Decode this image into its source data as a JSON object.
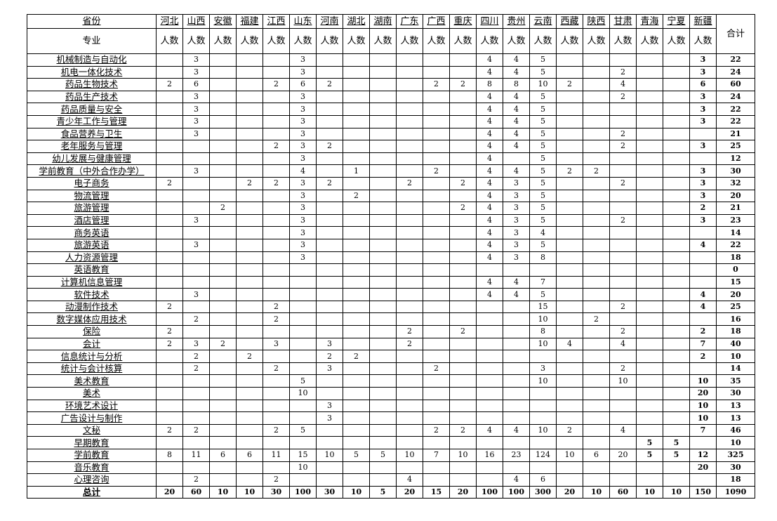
{
  "header": {
    "province_label": "省份",
    "major_label": "专业",
    "count_label": "人数",
    "total_label": "合计",
    "provinces": [
      "河北",
      "山西",
      "安徽",
      "福建",
      "江西",
      "山东",
      "河南",
      "湖北",
      "湖南",
      "广东",
      "广西",
      "重庆",
      "四川",
      "贵州",
      "云南",
      "西藏",
      "陕西",
      "甘肃",
      "青海",
      "宁夏",
      "新疆"
    ]
  },
  "rows": [
    {
      "major": "机械制造与自动化",
      "counts": [
        "",
        "3",
        "",
        "",
        "",
        "3",
        "",
        "",
        "",
        "",
        "",
        "",
        "4",
        "4",
        "5",
        "",
        "",
        "",
        "",
        "",
        "3"
      ],
      "total": "22"
    },
    {
      "major": "机电一体化技术",
      "counts": [
        "",
        "3",
        "",
        "",
        "",
        "3",
        "",
        "",
        "",
        "",
        "",
        "",
        "4",
        "4",
        "5",
        "",
        "",
        "2",
        "",
        "",
        "3"
      ],
      "total": "24"
    },
    {
      "major": "药品生物技术",
      "counts": [
        "2",
        "6",
        "",
        "",
        "2",
        "6",
        "2",
        "",
        "",
        "",
        "2",
        "2",
        "8",
        "8",
        "10",
        "2",
        "",
        "4",
        "",
        "",
        "6"
      ],
      "total": "60"
    },
    {
      "major": "药品生产技术",
      "counts": [
        "",
        "3",
        "",
        "",
        "",
        "3",
        "",
        "",
        "",
        "",
        "",
        "",
        "4",
        "4",
        "5",
        "",
        "",
        "2",
        "",
        "",
        "3"
      ],
      "total": "24"
    },
    {
      "major": "药品质量与安全",
      "counts": [
        "",
        "3",
        "",
        "",
        "",
        "3",
        "",
        "",
        "",
        "",
        "",
        "",
        "4",
        "4",
        "5",
        "",
        "",
        "",
        "",
        "",
        "3"
      ],
      "total": "22"
    },
    {
      "major": "青少年工作与管理",
      "counts": [
        "",
        "3",
        "",
        "",
        "",
        "3",
        "",
        "",
        "",
        "",
        "",
        "",
        "4",
        "4",
        "5",
        "",
        "",
        "",
        "",
        "",
        "3"
      ],
      "total": "22"
    },
    {
      "major": "食品营养与卫生",
      "counts": [
        "",
        "3",
        "",
        "",
        "",
        "3",
        "",
        "",
        "",
        "",
        "",
        "",
        "4",
        "4",
        "5",
        "",
        "",
        "2",
        "",
        "",
        ""
      ],
      "total": "21"
    },
    {
      "major": "老年服务与管理",
      "counts": [
        "",
        "",
        "",
        "",
        "2",
        "3",
        "2",
        "",
        "",
        "",
        "",
        "",
        "4",
        "4",
        "5",
        "",
        "",
        "2",
        "",
        "",
        "3"
      ],
      "total": "25"
    },
    {
      "major": "幼儿发展与健康管理",
      "counts": [
        "",
        "",
        "",
        "",
        "",
        "3",
        "",
        "",
        "",
        "",
        "",
        "",
        "4",
        "",
        "5",
        "",
        "",
        "",
        "",
        "",
        ""
      ],
      "total": "12"
    },
    {
      "major": "学前教育（中外合作办学）",
      "counts": [
        "",
        "3",
        "",
        "",
        "",
        "4",
        "",
        "1",
        "",
        "",
        "2",
        "",
        "4",
        "4",
        "5",
        "2",
        "2",
        "",
        "",
        "",
        "3"
      ],
      "total": "30"
    },
    {
      "major": "电子商务",
      "counts": [
        "2",
        "",
        "",
        "2",
        "2",
        "3",
        "2",
        "",
        "",
        "2",
        "",
        "2",
        "4",
        "3",
        "5",
        "",
        "",
        "2",
        "",
        "",
        "3"
      ],
      "total": "32"
    },
    {
      "major": "物流管理",
      "counts": [
        "",
        "",
        "",
        "",
        "",
        "3",
        "",
        "2",
        "",
        "",
        "",
        "",
        "4",
        "3",
        "5",
        "",
        "",
        "",
        "",
        "",
        "3"
      ],
      "total": "20"
    },
    {
      "major": "旅游管理",
      "counts": [
        "",
        "",
        "2",
        "",
        "",
        "3",
        "",
        "",
        "",
        "",
        "",
        "2",
        "4",
        "3",
        "5",
        "",
        "",
        "",
        "",
        "",
        "2"
      ],
      "total": "21"
    },
    {
      "major": "酒店管理",
      "counts": [
        "",
        "3",
        "",
        "",
        "",
        "3",
        "",
        "",
        "",
        "",
        "",
        "",
        "4",
        "3",
        "5",
        "",
        "",
        "2",
        "",
        "",
        "3"
      ],
      "total": "23"
    },
    {
      "major": "商务英语",
      "counts": [
        "",
        "",
        "",
        "",
        "",
        "3",
        "",
        "",
        "",
        "",
        "",
        "",
        "4",
        "3",
        "4",
        "",
        "",
        "",
        "",
        "",
        ""
      ],
      "total": "14"
    },
    {
      "major": "旅游英语",
      "counts": [
        "",
        "3",
        "",
        "",
        "",
        "3",
        "",
        "",
        "",
        "",
        "",
        "",
        "4",
        "3",
        "5",
        "",
        "",
        "",
        "",
        "",
        "4"
      ],
      "total": "22"
    },
    {
      "major": "人力资源管理",
      "counts": [
        "",
        "",
        "",
        "",
        "",
        "3",
        "",
        "",
        "",
        "",
        "",
        "",
        "4",
        "3",
        "8",
        "",
        "",
        "",
        "",
        "",
        ""
      ],
      "total": "18"
    },
    {
      "major": "英语教育",
      "counts": [
        "",
        "",
        "",
        "",
        "",
        "",
        "",
        "",
        "",
        "",
        "",
        "",
        "",
        "",
        "",
        "",
        "",
        "",
        "",
        "",
        ""
      ],
      "total": "0"
    },
    {
      "major": "计算机信息管理",
      "counts": [
        "",
        "",
        "",
        "",
        "",
        "",
        "",
        "",
        "",
        "",
        "",
        "",
        "4",
        "4",
        "7",
        "",
        "",
        "",
        "",
        "",
        ""
      ],
      "total": "15"
    },
    {
      "major": "软件技术",
      "counts": [
        "",
        "3",
        "",
        "",
        "",
        "",
        "",
        "",
        "",
        "",
        "",
        "",
        "4",
        "4",
        "5",
        "",
        "",
        "",
        "",
        "",
        "4"
      ],
      "total": "20"
    },
    {
      "major": "动漫制作技术",
      "counts": [
        "2",
        "",
        "",
        "",
        "2",
        "",
        "",
        "",
        "",
        "",
        "",
        "",
        "",
        "",
        "15",
        "",
        "",
        "2",
        "",
        "",
        "4"
      ],
      "total": "25"
    },
    {
      "major": "数字媒体应用技术",
      "counts": [
        "",
        "2",
        "",
        "",
        "2",
        "",
        "",
        "",
        "",
        "",
        "",
        "",
        "",
        "",
        "10",
        "",
        "2",
        "",
        "",
        "",
        ""
      ],
      "total": "16"
    },
    {
      "major": "保险",
      "counts": [
        "2",
        "",
        "",
        "",
        "",
        "",
        "",
        "",
        "",
        "2",
        "",
        "2",
        "",
        "",
        "8",
        "",
        "",
        "2",
        "",
        "",
        "2"
      ],
      "total": "18"
    },
    {
      "major": "会计",
      "counts": [
        "2",
        "3",
        "2",
        "",
        "3",
        "",
        "3",
        "",
        "",
        "2",
        "",
        "",
        "",
        "",
        "10",
        "4",
        "",
        "4",
        "",
        "",
        "7"
      ],
      "total": "40"
    },
    {
      "major": "信息统计与分析",
      "counts": [
        "",
        "2",
        "",
        "2",
        "",
        "",
        "2",
        "2",
        "",
        "",
        "",
        "",
        "",
        "",
        "",
        "",
        "",
        "",
        "",
        "",
        "2"
      ],
      "total": "10"
    },
    {
      "major": "统计与会计核算",
      "counts": [
        "",
        "2",
        "",
        "",
        "2",
        "",
        "3",
        "",
        "",
        "",
        "2",
        "",
        "",
        "",
        "3",
        "",
        "",
        "2",
        "",
        "",
        ""
      ],
      "total": "14"
    },
    {
      "major": "美术教育",
      "counts": [
        "",
        "",
        "",
        "",
        "",
        "5",
        "",
        "",
        "",
        "",
        "",
        "",
        "",
        "",
        "10",
        "",
        "",
        "10",
        "",
        "",
        "10"
      ],
      "total": "35"
    },
    {
      "major": "美术",
      "counts": [
        "",
        "",
        "",
        "",
        "",
        "10",
        "",
        "",
        "",
        "",
        "",
        "",
        "",
        "",
        "",
        "",
        "",
        "",
        "",
        "",
        "20"
      ],
      "total": "30"
    },
    {
      "major": "环境艺术设计",
      "counts": [
        "",
        "",
        "",
        "",
        "",
        "",
        "3",
        "",
        "",
        "",
        "",
        "",
        "",
        "",
        "",
        "",
        "",
        "",
        "",
        "",
        "10"
      ],
      "total": "13"
    },
    {
      "major": "广告设计与制作",
      "counts": [
        "",
        "",
        "",
        "",
        "",
        "",
        "3",
        "",
        "",
        "",
        "",
        "",
        "",
        "",
        "",
        "",
        "",
        "",
        "",
        "",
        "10"
      ],
      "total": "13"
    },
    {
      "major": "文秘",
      "counts": [
        "2",
        "2",
        "",
        "",
        "2",
        "5",
        "",
        "",
        "",
        "",
        "2",
        "2",
        "4",
        "4",
        "10",
        "2",
        "",
        "4",
        "",
        "",
        "7"
      ],
      "total": "46"
    },
    {
      "major": "早期教育",
      "counts": [
        "",
        "",
        "",
        "",
        "",
        "",
        "",
        "",
        "",
        "",
        "",
        "",
        "",
        "",
        "",
        "",
        "",
        "",
        "5",
        "5",
        ""
      ],
      "total": "10"
    },
    {
      "major": "学前教育",
      "counts": [
        "8",
        "11",
        "6",
        "6",
        "11",
        "15",
        "10",
        "5",
        "5",
        "10",
        "7",
        "10",
        "16",
        "23",
        "124",
        "10",
        "6",
        "20",
        "5",
        "5",
        "12"
      ],
      "total": "325"
    },
    {
      "major": "音乐教育",
      "counts": [
        "",
        "",
        "",
        "",
        "",
        "10",
        "",
        "",
        "",
        "",
        "",
        "",
        "",
        "",
        "",
        "",
        "",
        "",
        "",
        "",
        "20"
      ],
      "total": "30"
    },
    {
      "major": "心理咨询",
      "counts": [
        "",
        "2",
        "",
        "",
        "2",
        "",
        "",
        "",
        "",
        "4",
        "",
        "",
        "",
        "4",
        "6",
        "",
        "",
        "",
        "",
        "",
        ""
      ],
      "total": "18"
    }
  ],
  "totals": {
    "label": "总计",
    "counts": [
      "20",
      "60",
      "10",
      "10",
      "30",
      "100",
      "30",
      "10",
      "5",
      "20",
      "15",
      "20",
      "100",
      "100",
      "300",
      "20",
      "10",
      "60",
      "10",
      "10",
      "150"
    ],
    "total": "1090"
  }
}
